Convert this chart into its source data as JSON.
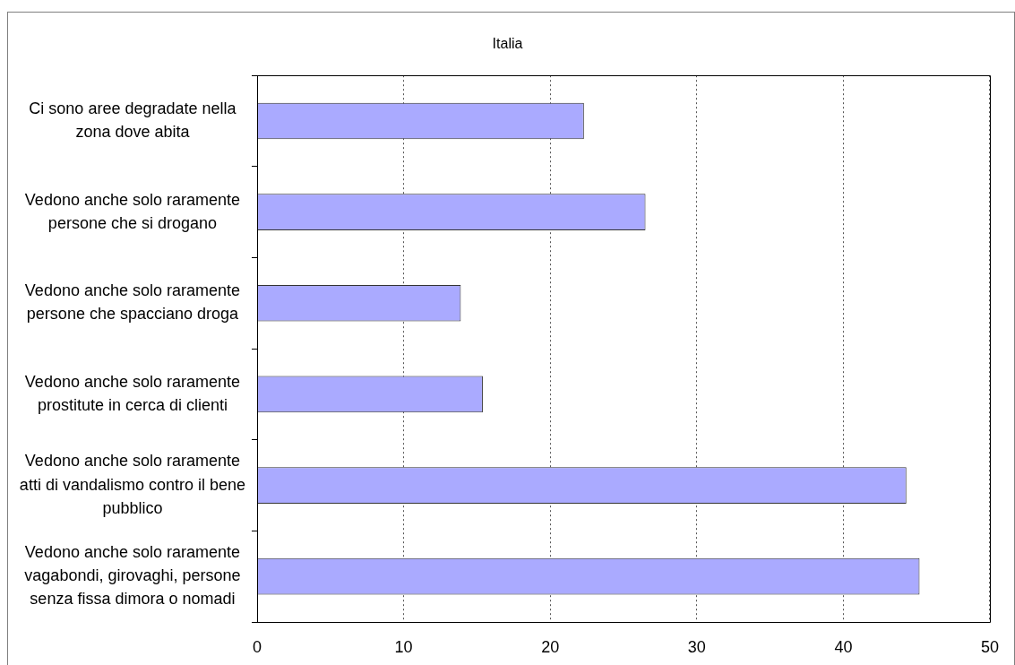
{
  "chart_data": {
    "type": "bar",
    "orientation": "horizontal",
    "title": "Italia",
    "categories": [
      "Ci sono aree degradate nella zona dove abita",
      "Vedono anche solo raramente persone che si drogano",
      "Vedono anche solo raramente persone che spacciano droga",
      "Vedono anche solo raramente prostitute in cerca di clienti",
      "Vedono anche solo raramente atti di vandalismo contro il bene pubblico",
      "Vedono anche solo raramente vagabondi, girovaghi, persone senza fissa dimora o nomadi"
    ],
    "values": [
      22.3,
      26.5,
      13.9,
      15.4,
      44.3,
      45.2
    ],
    "color": "#aaaaff",
    "xlim": [
      0,
      50
    ],
    "xticks": [
      0,
      10,
      20,
      30,
      40,
      50
    ],
    "grid": "x"
  }
}
